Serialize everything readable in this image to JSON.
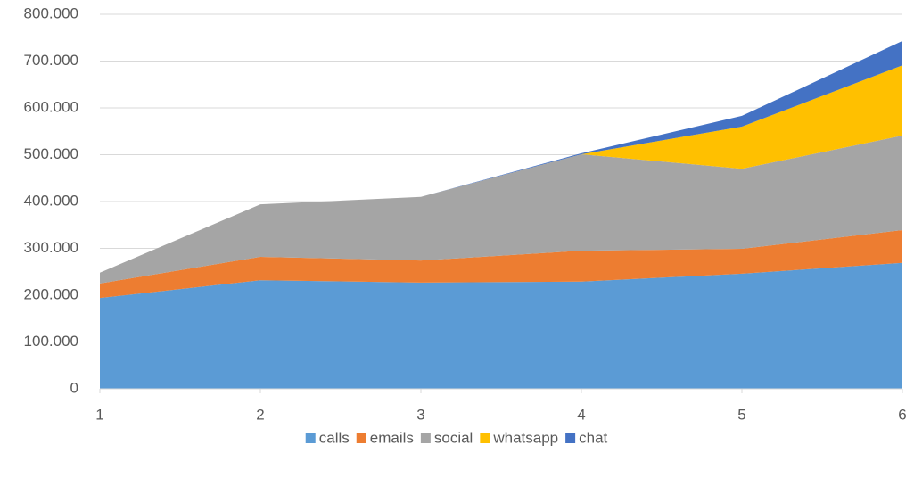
{
  "chart_data": {
    "type": "area",
    "stacked": true,
    "x": [
      1,
      2,
      3,
      4,
      5,
      6
    ],
    "xlim": [
      1,
      6
    ],
    "xticks": [
      1,
      2,
      3,
      4,
      5,
      6
    ],
    "ylim": [
      0,
      800000
    ],
    "yticks": [
      0,
      {
        "value": 100000,
        "label": "100.000"
      },
      {
        "value": 200000,
        "label": "200.000"
      },
      {
        "value": 300000,
        "label": "300.000"
      },
      {
        "value": 400000,
        "label": "400.000"
      },
      {
        "value": 500000,
        "label": "500.000"
      },
      {
        "value": 600000,
        "label": "600.000"
      },
      {
        "value": 700000,
        "label": "700.000"
      },
      {
        "value": 800000,
        "label": "800.000"
      }
    ],
    "grid": true,
    "legend": "bottom",
    "series": [
      {
        "name": "calls",
        "color": "#5b9bd5",
        "values": [
          194000,
          232000,
          227000,
          229000,
          246000,
          269000
        ]
      },
      {
        "name": "emails",
        "color": "#ed7d31",
        "values": [
          31000,
          50000,
          47000,
          66000,
          53000,
          70000
        ]
      },
      {
        "name": "social",
        "color": "#a5a5a5",
        "values": [
          23000,
          112000,
          136000,
          206000,
          171000,
          202000
        ]
      },
      {
        "name": "whatsapp",
        "color": "#ffc000",
        "values": [
          0,
          0,
          0,
          0,
          90000,
          150000
        ]
      },
      {
        "name": "chat",
        "color": "#4472c4",
        "values": [
          0,
          0,
          0,
          2000,
          23000,
          52000
        ]
      }
    ]
  }
}
